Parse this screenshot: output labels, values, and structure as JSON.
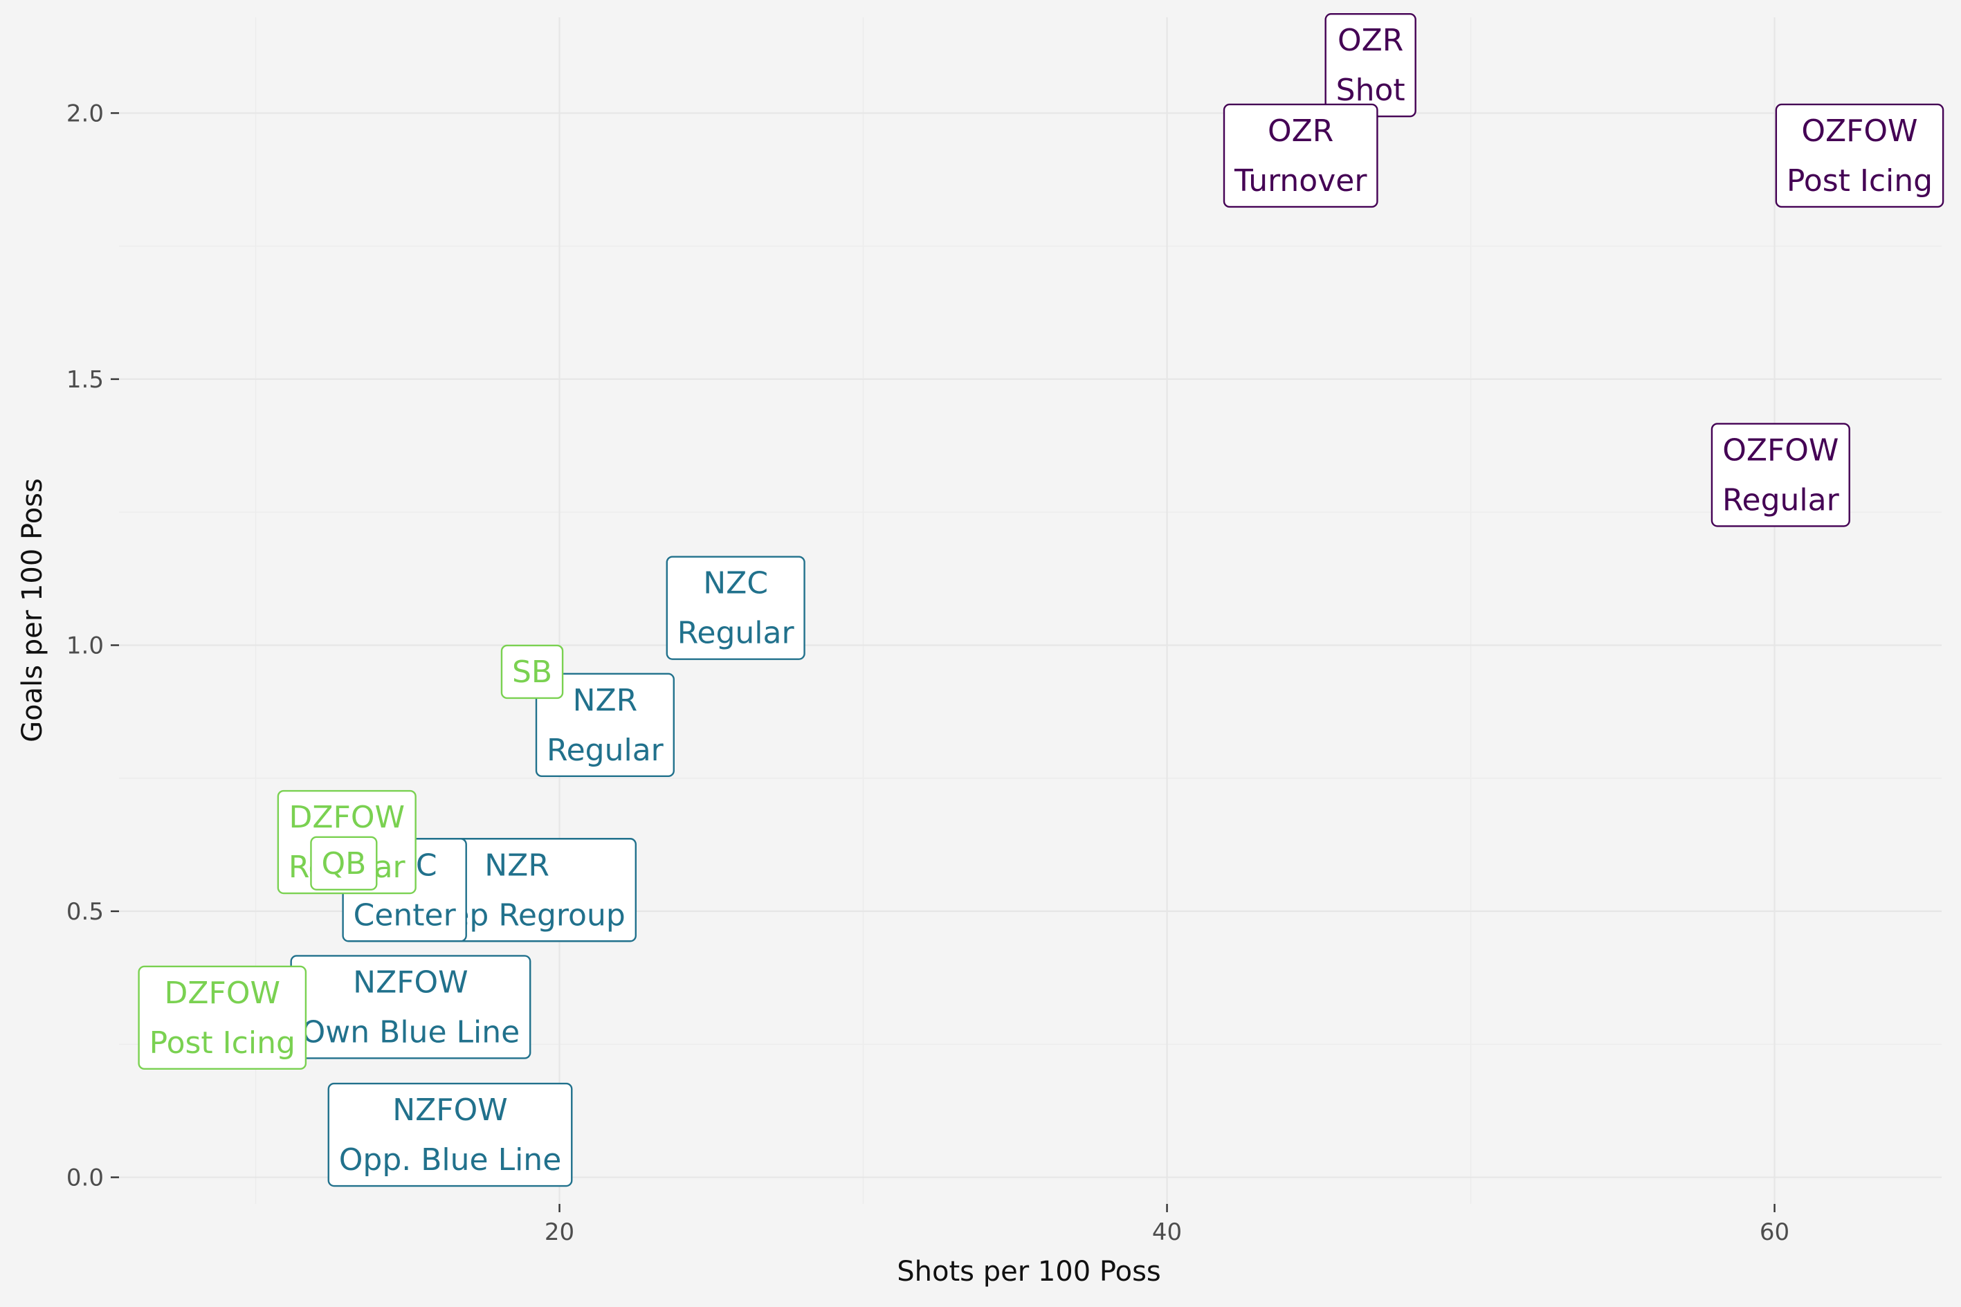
{
  "chart_data": {
    "type": "scatter",
    "xlabel": "Shots per 100 Poss",
    "ylabel": "Goals per 100 Poss",
    "xlim": [
      5.5,
      65.5
    ],
    "ylim": [
      -0.05,
      2.18
    ],
    "x_ticks": [
      20,
      40,
      60
    ],
    "x_tick_labels": [
      "20",
      "40",
      "60"
    ],
    "y_ticks": [
      0.0,
      0.5,
      1.0,
      1.5,
      2.0
    ],
    "y_tick_labels": [
      "0.0",
      "0.5",
      "1.0",
      "1.5",
      "2.0"
    ],
    "grid": true,
    "legend": "none",
    "colors": {
      "purple": "#440154",
      "teal": "#21718c",
      "green": "#7ad151"
    },
    "points": [
      {
        "x": 46.7,
        "y": 2.09,
        "line1": "OZR",
        "line2": "Shot",
        "color": "purple"
      },
      {
        "x": 44.4,
        "y": 1.92,
        "line1": "OZR",
        "line2": "Turnover",
        "color": "purple"
      },
      {
        "x": 62.8,
        "y": 1.92,
        "line1": "OZFOW",
        "line2": "Post Icing",
        "color": "purple"
      },
      {
        "x": 60.2,
        "y": 1.32,
        "line1": "OZFOW",
        "line2": "Regular",
        "color": "purple"
      },
      {
        "x": 25.8,
        "y": 1.07,
        "line1": "NZC",
        "line2": "Regular",
        "color": "teal"
      },
      {
        "x": 21.5,
        "y": 0.85,
        "line1": "NZR",
        "line2": "Regular",
        "color": "teal"
      },
      {
        "x": 18.6,
        "y": 0.54,
        "line1": "NZR",
        "line2": "Deep Regroup",
        "color": "teal"
      },
      {
        "x": 14.9,
        "y": 0.54,
        "line1": "NZC",
        "line2": "Center",
        "color": "teal"
      },
      {
        "x": 15.1,
        "y": 0.32,
        "line1": "NZFOW",
        "line2": "Own Blue Line",
        "color": "teal"
      },
      {
        "x": 16.4,
        "y": 0.08,
        "line1": "NZFOW",
        "line2": "Opp. Blue Line",
        "color": "teal"
      },
      {
        "x": 13.0,
        "y": 0.63,
        "line1": "DZFOW",
        "line2": "Regular",
        "color": "green"
      },
      {
        "x": 19.1,
        "y": 0.95,
        "line1": "SB",
        "line2": "",
        "color": "green"
      },
      {
        "x": 12.9,
        "y": 0.59,
        "line1": "QB",
        "line2": "",
        "color": "green"
      },
      {
        "x": 8.9,
        "y": 0.3,
        "line1": "DZFOW",
        "line2": "Post Icing",
        "color": "green"
      }
    ]
  }
}
